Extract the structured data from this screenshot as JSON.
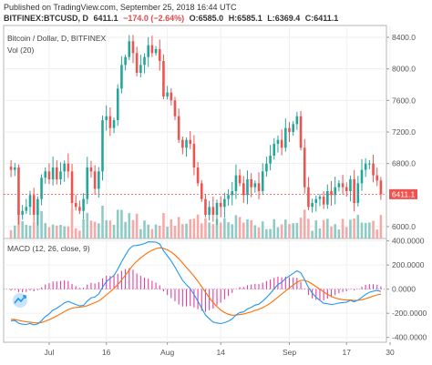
{
  "header": {
    "published": "Published on TradingView.com, September 25, 2018 16:44 UTC",
    "symbol": "BITFINEX:BTCUSD, D",
    "last": "6411.1",
    "change": "−174.0 (−2.64%)",
    "open": "O:6585.0",
    "high": "H:6585.1",
    "low": "L:6369.4",
    "close": "C:6411.1"
  },
  "legend": {
    "series": "Bitcoin / Dollar, D, BITFINEX",
    "volume": "Vol (20)",
    "macd": "MACD (12, 26, close, 9)"
  },
  "colors": {
    "up": "#26a69a",
    "down": "#ef5350",
    "up_vol": "#8fcbc5",
    "down_vol": "#f7a9a7",
    "macd_line": "#2196f3",
    "signal_line": "#ff6d00",
    "hist": "#e040a0",
    "last_price": "#ef5350"
  },
  "chart_data": [
    {
      "type": "candlestick",
      "title": "Bitcoin / Dollar, D, BITFINEX",
      "y_ticks": [
        "8400.0",
        "8000.0",
        "7600.0",
        "7200.0",
        "6800.0",
        "6000.0"
      ],
      "ylim": [
        5850,
        8550
      ],
      "last_price_label": "6411.1",
      "note": "daily OHLC candles Jun 21 – Sep 25 2018",
      "close": [
        6720,
        6750,
        6150,
        6200,
        6250,
        6400,
        6150,
        6350,
        6620,
        6700,
        6600,
        6750,
        6600,
        6700,
        6800,
        6700,
        6300,
        6250,
        6200,
        6350,
        6750,
        6700,
        6480,
        6700,
        7350,
        7400,
        7250,
        7350,
        7750,
        8050,
        8150,
        8350,
        8200,
        7950,
        8050,
        8150,
        8300,
        8200,
        8250,
        8100,
        7650,
        7700,
        7600,
        7400,
        7100,
        7000,
        7100,
        7050,
        6750,
        6550,
        6350,
        6150,
        6250,
        6150,
        6300,
        6250,
        6350,
        6400,
        6450,
        6650,
        6550,
        6400,
        6600,
        6500,
        6550,
        6450,
        6700,
        6800,
        6900,
        7050,
        7100,
        7000,
        7250,
        7200,
        7300,
        7400,
        7000,
        6500,
        6250,
        6300,
        6350,
        6380,
        6280,
        6450,
        6400,
        6500,
        6550,
        6500,
        6450,
        6600,
        6300,
        6550,
        6720,
        6800,
        6800,
        6650,
        6585,
        6411
      ]
    },
    {
      "type": "line",
      "title": "MACD (12, 26, close, 9)",
      "y_ticks": [
        "400.0000",
        "200.0000",
        "0.0000",
        "-200.0000",
        "-400.0000"
      ],
      "ylim": [
        -440,
        420
      ],
      "series": [
        {
          "values": [
            -262,
            -260,
            -282,
            -291,
            -293,
            -284,
            -296,
            -288,
            -261,
            -227,
            -205,
            -174,
            -158,
            -137,
            -113,
            -101,
            -115,
            -127,
            -139,
            -135,
            -99,
            -72,
            -65,
            -40,
            15,
            63,
            88,
            115,
            165,
            227,
            282,
            333,
            360,
            362,
            369,
            378,
            392,
            391,
            390,
            374,
            319,
            277,
            234,
            183,
            126,
            72,
            37,
            5,
            -45,
            -100,
            -158,
            -215,
            -245,
            -273,
            -280,
            -285,
            -278,
            -265,
            -247,
            -214,
            -194,
            -188,
            -164,
            -150,
            -133,
            -125,
            -99,
            -69,
            -36,
            2,
            38,
            57,
            89,
            109,
            131,
            152,
            135,
            79,
            14,
            -33,
            -67,
            -92,
            -117,
            -121,
            -127,
            -123,
            -115,
            -111,
            -108,
            -93,
            -104,
            -91,
            -68,
            -43,
            -26,
            -17,
            -11,
            -19
          ]
        },
        {
          "values": [
            -250,
            -252,
            -258,
            -265,
            -270,
            -273,
            -278,
            -280,
            -276,
            -266,
            -254,
            -238,
            -222,
            -205,
            -186,
            -169,
            -158,
            -152,
            -149,
            -146,
            -137,
            -124,
            -112,
            -98,
            -75,
            -48,
            -21,
            6,
            38,
            75,
            116,
            159,
            199,
            232,
            259,
            283,
            305,
            322,
            336,
            343,
            338,
            326,
            308,
            283,
            252,
            216,
            180,
            145,
            107,
            66,
            21,
            -26,
            -70,
            -111,
            -145,
            -173,
            -194,
            -208,
            -216,
            -215,
            -211,
            -206,
            -197,
            -188,
            -177,
            -167,
            -153,
            -136,
            -116,
            -92,
            -66,
            -41,
            -15,
            10,
            34,
            58,
            73,
            74,
            62,
            43,
            21,
            0,
            -24,
            -43,
            -60,
            -73,
            -81,
            -87,
            -91,
            -91,
            -94,
            -93,
            -88,
            -79,
            -68,
            -58,
            -48,
            -42
          ]
        }
      ],
      "histogram": [
        -12,
        -8,
        -24,
        -26,
        -23,
        -11,
        -18,
        -8,
        15,
        39,
        49,
        64,
        64,
        68,
        73,
        68,
        43,
        25,
        10,
        11,
        38,
        52,
        47,
        58,
        90,
        111,
        109,
        109,
        127,
        152,
        166,
        174,
        161,
        130,
        110,
        95,
        87,
        69,
        54,
        31,
        -19,
        -49,
        -74,
        -100,
        -126,
        -144,
        -143,
        -140,
        -152,
        -166,
        -179,
        -189,
        -175,
        -162,
        -135,
        -112,
        -84,
        -57,
        -31,
        1,
        17,
        18,
        33,
        38,
        44,
        42,
        54,
        67,
        80,
        94,
        104,
        98,
        104,
        99,
        97,
        94,
        62,
        5,
        -48,
        -76,
        -88,
        -92,
        -93,
        -78,
        -67,
        -50,
        -34,
        -24,
        -17,
        -2,
        -10,
        2,
        20,
        36,
        42,
        41,
        37,
        23
      ]
    }
  ],
  "price_label": "6411.1",
  "x_ticks": [
    "Jul",
    "16",
    "Aug",
    "14",
    "Sep",
    "17",
    "30"
  ],
  "logo_icon": "tradingview-logo-icon"
}
